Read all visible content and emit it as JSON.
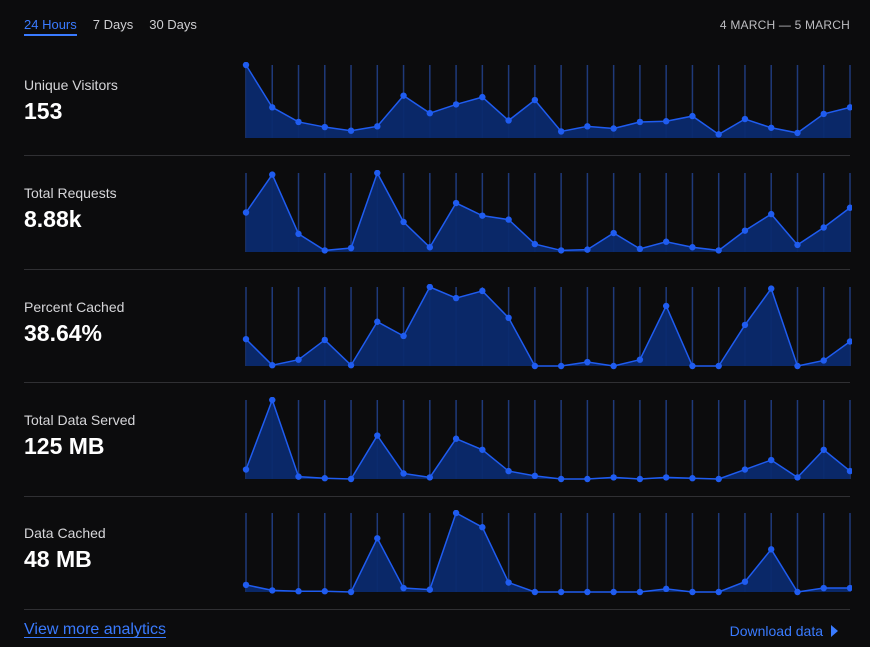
{
  "tabs": [
    {
      "label": "24 Hours",
      "active": true
    },
    {
      "label": "7 Days",
      "active": false
    },
    {
      "label": "30 Days",
      "active": false
    }
  ],
  "date_range": "4 MARCH — 5 MARCH",
  "colors": {
    "accent": "#3a7bff",
    "area": "#0b2a6e",
    "line": "#1f5cf0",
    "grid": "#1f3a7a"
  },
  "metrics": [
    {
      "label": "Unique Visitors",
      "value": "153",
      "series": [
        1.0,
        0.42,
        0.22,
        0.15,
        0.1,
        0.16,
        0.58,
        0.34,
        0.46,
        0.56,
        0.24,
        0.52,
        0.09,
        0.16,
        0.13,
        0.22,
        0.23,
        0.3,
        0.05,
        0.26,
        0.14,
        0.07,
        0.33,
        0.42
      ]
    },
    {
      "label": "Total Requests",
      "value": "8.88k",
      "series": [
        0.5,
        0.98,
        0.23,
        0.02,
        0.05,
        1.0,
        0.38,
        0.06,
        0.62,
        0.46,
        0.41,
        0.1,
        0.02,
        0.03,
        0.24,
        0.04,
        0.13,
        0.06,
        0.02,
        0.27,
        0.48,
        0.09,
        0.31,
        0.56
      ]
    },
    {
      "label": "Percent Cached",
      "value": "38.64%",
      "series": [
        0.34,
        0.01,
        0.08,
        0.33,
        0.01,
        0.56,
        0.38,
        1.0,
        0.86,
        0.95,
        0.61,
        0.0,
        0.0,
        0.05,
        0.0,
        0.08,
        0.76,
        0.0,
        0.0,
        0.52,
        0.98,
        0.0,
        0.07,
        0.31
      ]
    },
    {
      "label": "Total Data Served",
      "value": "125 MB",
      "series": [
        0.12,
        1.0,
        0.03,
        0.01,
        0.0,
        0.55,
        0.07,
        0.02,
        0.51,
        0.37,
        0.1,
        0.04,
        0.0,
        0.0,
        0.02,
        0.0,
        0.02,
        0.01,
        0.0,
        0.12,
        0.24,
        0.02,
        0.37,
        0.1
      ]
    },
    {
      "label": "Data Cached",
      "value": "48 MB",
      "series": [
        0.09,
        0.02,
        0.01,
        0.01,
        0.0,
        0.68,
        0.05,
        0.03,
        1.0,
        0.82,
        0.12,
        0.0,
        0.0,
        0.0,
        0.0,
        0.0,
        0.04,
        0.0,
        0.0,
        0.13,
        0.54,
        0.0,
        0.05,
        0.05
      ]
    }
  ],
  "footer": {
    "link_label": "View more analytics",
    "download_label": "Download data"
  }
}
